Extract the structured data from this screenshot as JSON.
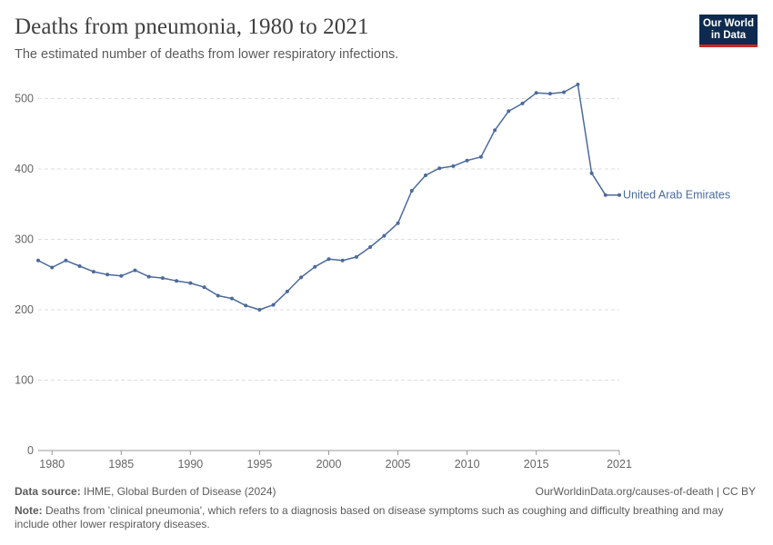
{
  "header": {
    "title": "Deaths from pneumonia, 1980 to 2021",
    "subtitle": "The estimated number of deaths from lower respiratory infections."
  },
  "logo": {
    "line1": "Our World",
    "line2": "in Data"
  },
  "footer": {
    "source_label": "Data source:",
    "source_text": "IHME, Global Burden of Disease (2024)",
    "url": "OurWorldinData.org/causes-of-death | CC BY",
    "note_label": "Note:",
    "note_text": "Deaths from 'clinical pneumonia', which refers to a diagnosis based on disease symptoms such as coughing and difficulty breathing and may include other lower respiratory diseases."
  },
  "colors": {
    "series": "#4c6a9c",
    "grid": "#dddddd",
    "axis": "#999999"
  },
  "chart_data": {
    "type": "line",
    "title": "Deaths from pneumonia, 1980 to 2021",
    "subtitle": "The estimated number of deaths from lower respiratory infections.",
    "xlim": [
      1979,
      2021
    ],
    "ylim": [
      0,
      520
    ],
    "x_ticks": [
      1980,
      1985,
      1990,
      1995,
      2000,
      2005,
      2010,
      2015,
      2021
    ],
    "y_ticks": [
      0,
      100,
      200,
      300,
      400,
      500
    ],
    "grid": "horizontal dashed",
    "series": [
      {
        "name": "United Arab Emirates",
        "x": [
          1979,
          1980,
          1981,
          1982,
          1983,
          1984,
          1985,
          1986,
          1987,
          1988,
          1989,
          1990,
          1991,
          1992,
          1993,
          1994,
          1995,
          1996,
          1997,
          1998,
          1999,
          2000,
          2001,
          2002,
          2003,
          2004,
          2005,
          2006,
          2007,
          2008,
          2009,
          2010,
          2011,
          2012,
          2013,
          2014,
          2015,
          2016,
          2017,
          2018,
          2019,
          2020,
          2021
        ],
        "values": [
          270,
          260,
          270,
          262,
          254,
          250,
          248,
          256,
          247,
          245,
          241,
          238,
          232,
          220,
          216,
          206,
          200,
          207,
          226,
          246,
          261,
          272,
          270,
          275,
          289,
          305,
          323,
          369,
          391,
          401,
          404,
          412,
          417,
          455,
          482,
          493,
          508,
          507,
          509,
          520,
          394,
          363,
          363
        ]
      }
    ]
  }
}
